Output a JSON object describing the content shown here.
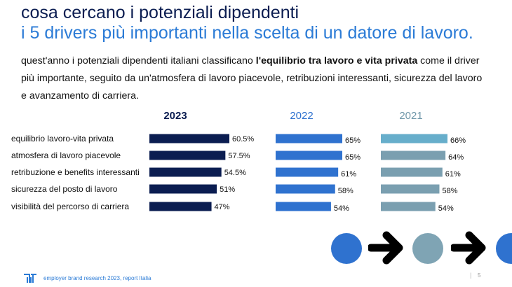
{
  "slide": {
    "title_line1": "cosa cercano i potenziali dipendenti",
    "title_line2": "i 5 drivers più importanti nella scelta di un datore di lavoro.",
    "intro_before": "quest'anno i potenziali dipendenti italiani classificano ",
    "intro_bold": "l'equilibrio tra lavoro e vita privata",
    "intro_after": " come il driver più importante, seguito da un'atmosfera di lavoro piacevole, retribuzioni interessanti, sicurezza del lavoro e avanzamento di carriera."
  },
  "chart_data": {
    "type": "bar",
    "orientation": "horizontal",
    "categories": [
      "equilibrio lavoro-vita privata",
      "atmosfera di lavoro piacevole",
      "retribuzione e benefits interessanti",
      "sicurezza del posto di lavoro",
      "visibilità del percorso di carriera"
    ],
    "series": [
      {
        "name": "2023",
        "values": [
          60.5,
          57.5,
          54.5,
          51,
          47
        ],
        "labels": [
          "60.5%",
          "57.5%",
          "54.5%",
          "51%",
          "47%"
        ],
        "color": "#0b1d51"
      },
      {
        "name": "2022",
        "values": [
          65,
          65,
          61,
          58,
          54
        ],
        "labels": [
          "65%",
          "65%",
          "61%",
          "58%",
          "54%"
        ],
        "color": "#2f72cf"
      },
      {
        "name": "2021",
        "values": [
          66,
          64,
          61,
          58,
          54
        ],
        "labels": [
          "66%",
          "64%",
          "61%",
          "58%",
          "54%"
        ],
        "color": "#7a9fb0",
        "highlight_color": "#67aecb"
      }
    ],
    "title": "",
    "xlabel": "",
    "ylabel": ""
  },
  "colors": {
    "navy": "#0b1d51",
    "blue": "#2b7bd6",
    "teal": "#7a9fb0",
    "circle_blue": "#2f72cf",
    "circle_teal": "#7fa4b4"
  },
  "footer": {
    "text": "employer brand research 2023, report Italia",
    "separator": "|",
    "page": "5"
  }
}
